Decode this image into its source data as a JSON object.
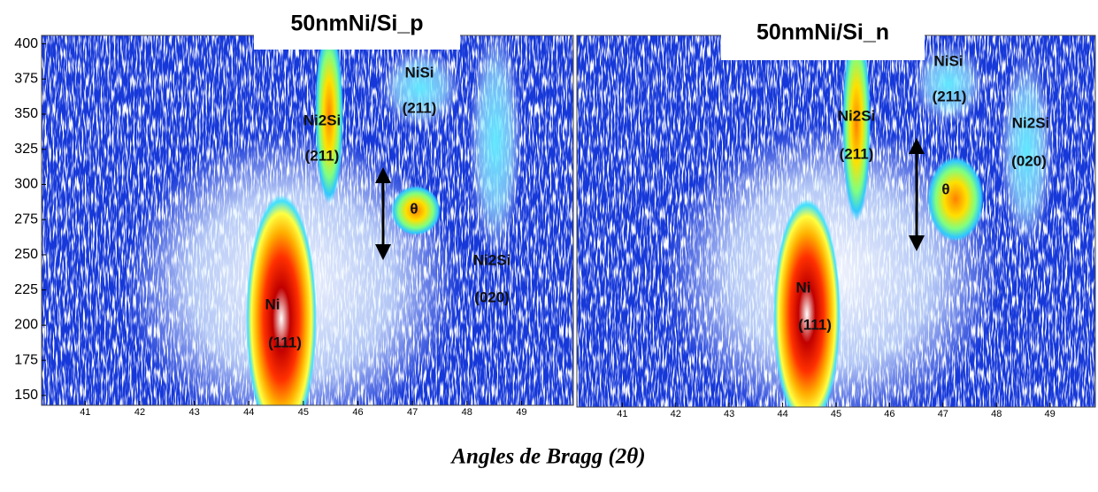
{
  "chart_data": [
    {
      "type": "contour",
      "title": "50nmNi/Si_p",
      "xlim": [
        40.2,
        49.95
      ],
      "ylim": [
        143,
        406
      ],
      "xticks": [
        41,
        42,
        43,
        44,
        45,
        46,
        47,
        48,
        49
      ],
      "yticks": [
        150,
        175,
        200,
        225,
        250,
        275,
        300,
        325,
        350,
        375,
        400
      ],
      "annotations": [
        "Ni",
        "(111)",
        "Ni2Si",
        "(211)",
        "NiSi",
        "(211)",
        "θ",
        "Ni2Si",
        "(020)"
      ]
    },
    {
      "type": "contour",
      "title": "50nmNi/Si_n",
      "xlim": [
        40.15,
        49.85
      ],
      "ylim": [
        143,
        406
      ],
      "xticks": [
        41,
        42,
        43,
        44,
        45,
        46,
        47,
        48,
        49
      ],
      "annotations": [
        "Ni",
        "(111)",
        "Ni2Si",
        "(211)",
        "NiSi",
        "(211)",
        "θ",
        "Ni2Si",
        "(020)"
      ]
    }
  ],
  "xlabel": "Angles de Bragg (2θ)"
}
